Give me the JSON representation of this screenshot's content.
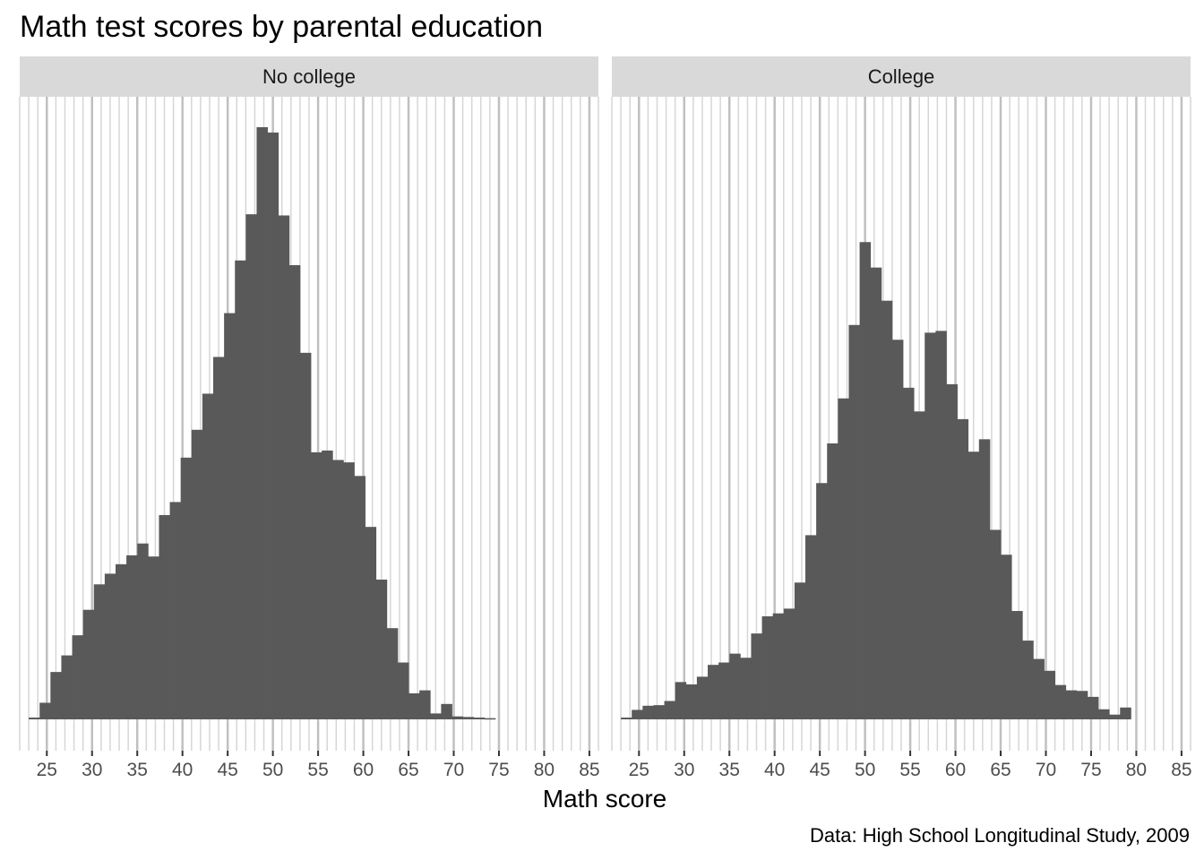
{
  "colors": {
    "bar": "#595959",
    "strip": "#d9d9d9",
    "grid_major": "#c0c0c0",
    "grid_minor": "#d6d6d6",
    "text": "#000000",
    "tick_text": "#4d4d4d"
  },
  "chart_data": {
    "type": "bar",
    "title": "Math test scores by parental education",
    "xlabel": "Math score",
    "ylabel": "",
    "caption": "Data: High School Longitudinal Study, 2009",
    "bin_width": 1.2,
    "xlim": [
      22.0,
      86.0
    ],
    "x_ticks": [
      "25",
      "30",
      "35",
      "40",
      "45",
      "50",
      "55",
      "60",
      "65",
      "70",
      "75",
      "80",
      "85"
    ],
    "ylim": [
      0,
      1000
    ],
    "y_axis_shown": false,
    "grid": {
      "vertical": true,
      "horizontal": false
    },
    "x": [
      23.6,
      24.8,
      26.0,
      27.2,
      28.4,
      29.6,
      30.8,
      32.0,
      33.2,
      34.4,
      35.6,
      36.8,
      38.0,
      39.2,
      40.4,
      41.6,
      42.8,
      44.0,
      45.2,
      46.4,
      47.6,
      48.8,
      50.0,
      51.2,
      52.4,
      53.6,
      54.8,
      56.0,
      57.2,
      58.4,
      59.6,
      60.8,
      62.0,
      63.2,
      64.4,
      65.6,
      66.8,
      68.0,
      69.2,
      70.4,
      71.6,
      72.8,
      74.0,
      75.2,
      76.4,
      77.6,
      78.8,
      80.0,
      81.2,
      82.4
    ],
    "panels": [
      {
        "label": "No college",
        "values": [
          3,
          28,
          80,
          108,
          142,
          185,
          228,
          246,
          262,
          277,
          297,
          275,
          345,
          367,
          442,
          489,
          550,
          612,
          686,
          775,
          853,
          1000,
          991,
          851,
          767,
          619,
          451,
          454,
          438,
          434,
          411,
          325,
          236,
          154,
          96,
          44,
          49,
          10,
          26,
          5,
          4,
          3,
          2,
          0,
          0,
          0,
          0,
          0,
          0,
          0
        ]
      },
      {
        "label": "College",
        "values": [
          3,
          16,
          23,
          24,
          31,
          63,
          59,
          72,
          92,
          96,
          111,
          104,
          145,
          174,
          179,
          187,
          231,
          311,
          399,
          466,
          542,
          666,
          806,
          763,
          707,
          641,
          560,
          520,
          653,
          656,
          566,
          507,
          452,
          473,
          320,
          278,
          183,
          133,
          102,
          82,
          58,
          49,
          48,
          38,
          17,
          8,
          20,
          0,
          0,
          0
        ]
      }
    ]
  }
}
